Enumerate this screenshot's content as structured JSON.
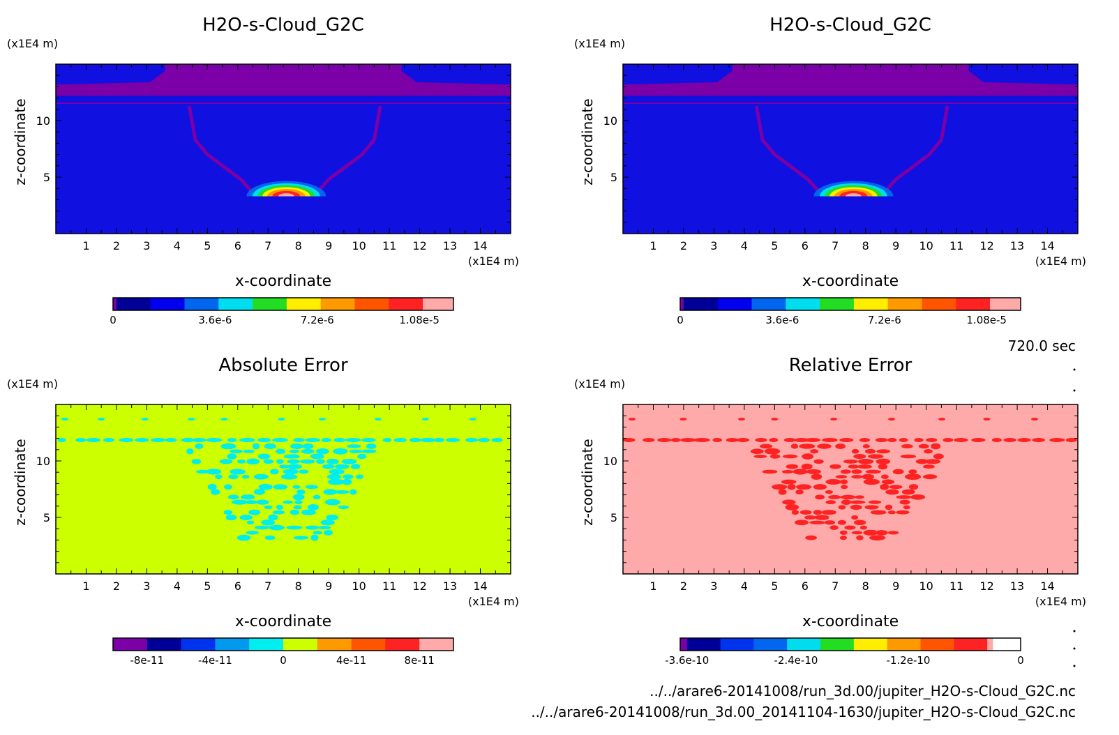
{
  "time_label": "720.0 sec",
  "files": [
    "../../arare6-20141008/run_3d.00/jupiter_H2O-s-Cloud_G2C.nc",
    "../../arare6-20141008/run_3d.00_20141104-1630/jupiter_H2O-s-Cloud_G2C.nc"
  ],
  "chart_data": [
    {
      "id": "tl",
      "type": "heatmap",
      "title": "H2O-s-Cloud_G2C",
      "xlabel": "x-coordinate",
      "ylabel": "z-coordinate",
      "x_unit": "(x1E4 m)",
      "y_unit": "(x1E4 m)",
      "xlim": [
        0,
        15
      ],
      "ylim": [
        0,
        15
      ],
      "xticks": [
        1,
        2,
        3,
        4,
        5,
        6,
        7,
        8,
        9,
        10,
        11,
        12,
        13,
        14
      ],
      "yticks": [
        5,
        10
      ],
      "background": "#1010e0",
      "colorbar": {
        "colors": [
          "#7b00a8",
          "#000099",
          "#0000ee",
          "#0066ee",
          "#00ddee",
          "#22dd22",
          "#ffee00",
          "#ff9900",
          "#ff5500",
          "#ff2222",
          "#ffaaaa"
        ],
        "fractions": [
          0.01,
          0.1,
          0.1,
          0.1,
          0.1,
          0.1,
          0.1,
          0.1,
          0.1,
          0.1,
          0.09
        ],
        "labels": [
          "0",
          "3.6e-6",
          "7.2e-6",
          "1.08e-5"
        ],
        "label_positions": [
          0.0,
          0.3,
          0.6,
          0.9
        ]
      }
    },
    {
      "id": "tr",
      "type": "heatmap",
      "title": "H2O-s-Cloud_G2C",
      "xlabel": "x-coordinate",
      "ylabel": "z-coordinate",
      "x_unit": "(x1E4 m)",
      "y_unit": "(x1E4 m)",
      "xlim": [
        0,
        15
      ],
      "ylim": [
        0,
        15
      ],
      "xticks": [
        1,
        2,
        3,
        4,
        5,
        6,
        7,
        8,
        9,
        10,
        11,
        12,
        13,
        14
      ],
      "yticks": [
        5,
        10
      ],
      "background": "#1010e0",
      "colorbar": {
        "colors": [
          "#7b00a8",
          "#000099",
          "#0000ee",
          "#0066ee",
          "#00ddee",
          "#22dd22",
          "#ffee00",
          "#ff9900",
          "#ff5500",
          "#ff2222",
          "#ffaaaa"
        ],
        "fractions": [
          0.01,
          0.1,
          0.1,
          0.1,
          0.1,
          0.1,
          0.1,
          0.1,
          0.1,
          0.1,
          0.09
        ],
        "labels": [
          "0",
          "3.6e-6",
          "7.2e-6",
          "1.08e-5"
        ],
        "label_positions": [
          0.0,
          0.3,
          0.6,
          0.9
        ]
      }
    },
    {
      "id": "bl",
      "type": "heatmap",
      "title": "Absolute Error",
      "xlabel": "x-coordinate",
      "ylabel": "z-coordinate",
      "x_unit": "(x1E4 m)",
      "y_unit": "(x1E4 m)",
      "xlim": [
        0,
        15
      ],
      "ylim": [
        0,
        15
      ],
      "xticks": [
        1,
        2,
        3,
        4,
        5,
        6,
        7,
        8,
        9,
        10,
        11,
        12,
        13,
        14
      ],
      "yticks": [
        5,
        10
      ],
      "background": "#ccff00",
      "speckle_color": "#00eeee",
      "colorbar": {
        "colors": [
          "#7b00a8",
          "#000099",
          "#0033ee",
          "#0099ee",
          "#00eeee",
          "#ccff00",
          "#ff9900",
          "#ff5500",
          "#ff2222",
          "#ffaaaa"
        ],
        "fractions": [
          0.1,
          0.1,
          0.1,
          0.1,
          0.1,
          0.1,
          0.1,
          0.1,
          0.1,
          0.1
        ],
        "labels": [
          "-8e-11",
          "-4e-11",
          "0",
          "4e-11",
          "8e-11"
        ],
        "label_positions": [
          0.1,
          0.3,
          0.5,
          0.7,
          0.9
        ]
      }
    },
    {
      "id": "br",
      "type": "heatmap",
      "title": "Relative Error",
      "xlabel": "x-coordinate",
      "ylabel": "z-coordinate",
      "x_unit": "(x1E4 m)",
      "y_unit": "(x1E4 m)",
      "xlim": [
        0,
        15
      ],
      "ylim": [
        0,
        15
      ],
      "xticks": [
        1,
        2,
        3,
        4,
        5,
        6,
        7,
        8,
        9,
        10,
        11,
        12,
        13,
        14
      ],
      "yticks": [
        5,
        10
      ],
      "background": "#ffaaaa",
      "speckle_color": "#ff2222",
      "colorbar": {
        "colors": [
          "#7b00a8",
          "#000099",
          "#0033ee",
          "#0066ee",
          "#00ddee",
          "#22dd22",
          "#ffee00",
          "#ff9900",
          "#ff5500",
          "#ff2222",
          "#ffaaaa"
        ],
        "fractions": [
          0.02,
          0.098,
          0.098,
          0.098,
          0.098,
          0.098,
          0.098,
          0.098,
          0.098,
          0.098,
          0.016
        ],
        "labels": [
          "-3.6e-10",
          "-2.4e-10",
          "-1.2e-10",
          "0"
        ],
        "label_positions": [
          0.02,
          0.34,
          0.67,
          1.0
        ]
      }
    }
  ]
}
